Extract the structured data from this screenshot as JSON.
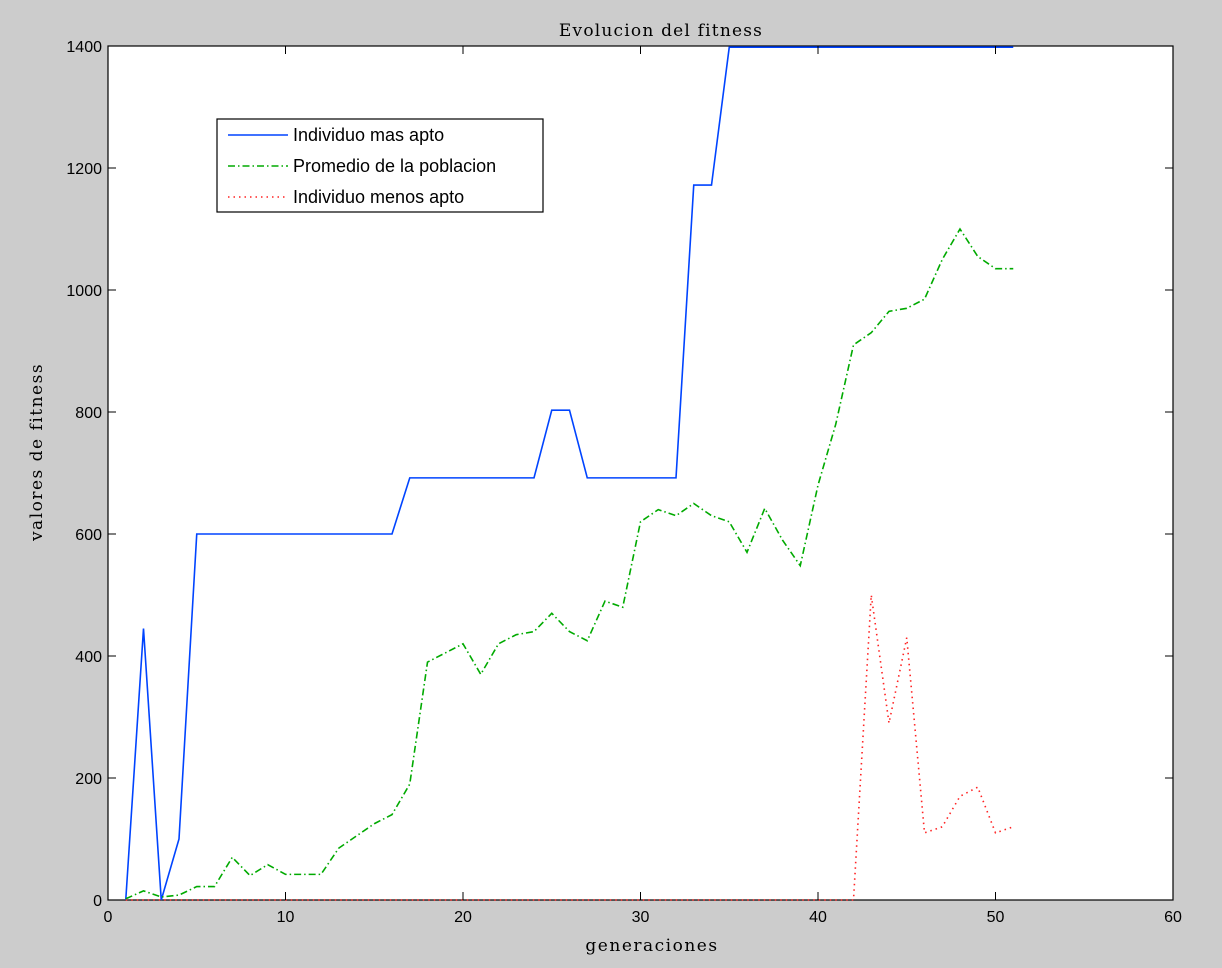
{
  "chart_data": {
    "type": "line",
    "title": "Evolucion del fitness",
    "xlabel": "generaciones",
    "ylabel": "valores de fitness",
    "xlim": [
      0,
      60
    ],
    "ylim": [
      0,
      1400
    ],
    "xticks": [
      0,
      10,
      20,
      30,
      40,
      50,
      60
    ],
    "yticks": [
      0,
      200,
      400,
      600,
      800,
      1000,
      1200,
      1400
    ],
    "grid": false,
    "legend_position": "top-left",
    "x": [
      1,
      2,
      3,
      4,
      5,
      6,
      7,
      8,
      9,
      10,
      11,
      12,
      13,
      14,
      15,
      16,
      17,
      18,
      19,
      20,
      21,
      22,
      23,
      24,
      25,
      26,
      27,
      28,
      29,
      30,
      31,
      32,
      33,
      34,
      35,
      36,
      37,
      38,
      39,
      40,
      41,
      42,
      43,
      44,
      45,
      46,
      47,
      48,
      49,
      50,
      51
    ],
    "series": [
      {
        "name": "Individuo mas apto",
        "color": "#0044ff",
        "style": "solid",
        "values": [
          0,
          445,
          0,
          100,
          600,
          600,
          600,
          600,
          600,
          600,
          600,
          600,
          600,
          600,
          600,
          600,
          692,
          692,
          692,
          692,
          692,
          692,
          692,
          692,
          803,
          803,
          692,
          692,
          692,
          692,
          692,
          692,
          1172,
          1172,
          1398,
          1398,
          1398,
          1398,
          1398,
          1398,
          1398,
          1398,
          1398,
          1398,
          1398,
          1398,
          1398,
          1398,
          1398,
          1398,
          1398
        ]
      },
      {
        "name": "Promedio de la poblacion",
        "color": "#00aa00",
        "style": "dashdot",
        "values": [
          2,
          15,
          5,
          8,
          22,
          22,
          70,
          40,
          58,
          42,
          42,
          42,
          85,
          105,
          125,
          140,
          190,
          390,
          405,
          420,
          370,
          420,
          435,
          440,
          470,
          440,
          425,
          490,
          480,
          620,
          640,
          630,
          650,
          630,
          620,
          570,
          642,
          590,
          548,
          680,
          780,
          910,
          930,
          965,
          970,
          985,
          1050,
          1100,
          1055,
          1035,
          1035
        ]
      },
      {
        "name": "Individuo menos apto",
        "color": "#ff2222",
        "style": "dotted",
        "values": [
          0,
          0,
          0,
          0,
          0,
          0,
          0,
          0,
          0,
          0,
          0,
          0,
          0,
          0,
          0,
          0,
          0,
          0,
          0,
          0,
          0,
          0,
          0,
          0,
          0,
          0,
          0,
          0,
          0,
          0,
          0,
          0,
          0,
          0,
          0,
          0,
          0,
          0,
          0,
          0,
          0,
          0,
          500,
          290,
          430,
          110,
          120,
          170,
          185,
          110,
          120
        ]
      }
    ]
  }
}
